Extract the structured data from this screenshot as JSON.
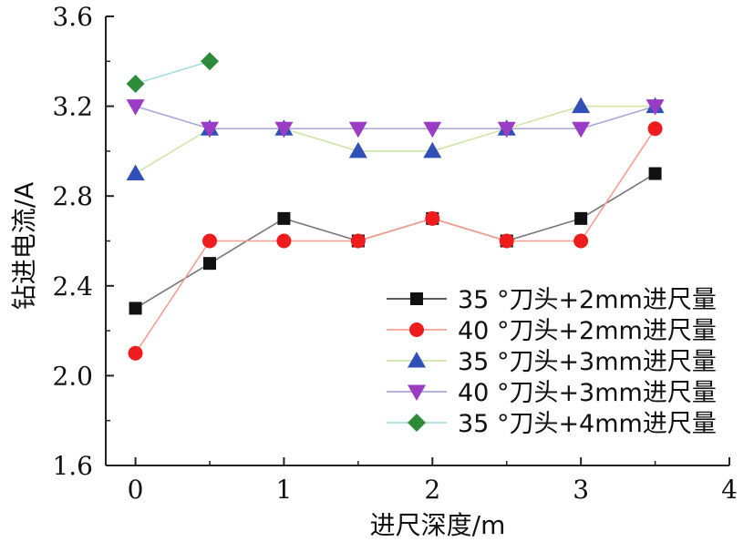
{
  "chart_data": {
    "type": "line",
    "title": "",
    "xlabel": "进尺深度/m",
    "ylabel": "钻进电流/A",
    "xlim": [
      -0.2,
      4
    ],
    "ylim": [
      1.6,
      3.6
    ],
    "xticks": [
      0,
      1,
      2,
      3,
      4
    ],
    "xtick_labels": [
      "0",
      "1",
      "2",
      "3",
      "4"
    ],
    "yticks": [
      1.6,
      2.0,
      2.4,
      2.8,
      3.2,
      3.6
    ],
    "ytick_labels": [
      "1.6",
      "2.0",
      "2.4",
      "2.8",
      "3.2",
      "3.6"
    ],
    "grid": false,
    "legend_position": "bottom-right",
    "series": [
      {
        "name": "35 °刀头+2mm进尺量",
        "marker": "square",
        "marker_color": "#111111",
        "line_color": "#777777",
        "x": [
          0,
          0.5,
          1,
          1.5,
          2,
          2.5,
          3,
          3.5
        ],
        "y": [
          2.3,
          2.5,
          2.7,
          2.6,
          2.7,
          2.6,
          2.7,
          2.9
        ]
      },
      {
        "name": "40 °刀头+2mm进尺量",
        "marker": "circle",
        "marker_color": "#ee1c1c",
        "line_color": "#f4a090",
        "x": [
          0,
          0.5,
          1,
          1.5,
          2,
          2.5,
          3,
          3.5
        ],
        "y": [
          2.1,
          2.6,
          2.6,
          2.6,
          2.7,
          2.6,
          2.6,
          3.1
        ]
      },
      {
        "name": "35 °刀头+3mm进尺量",
        "marker": "triangle-up",
        "marker_color": "#3050b8",
        "line_color": "#cfe6a8",
        "x": [
          0,
          0.5,
          1,
          1.5,
          2,
          2.5,
          3,
          3.5
        ],
        "y": [
          2.9,
          3.1,
          3.1,
          3.0,
          3.0,
          3.1,
          3.2,
          3.2
        ]
      },
      {
        "name": "40 °刀头+3mm进尺量",
        "marker": "triangle-down",
        "marker_color": "#9a3cc4",
        "line_color": "#a7a7d8",
        "x": [
          0,
          0.5,
          1,
          1.5,
          2,
          2.5,
          3,
          3.5
        ],
        "y": [
          3.2,
          3.1,
          3.1,
          3.1,
          3.1,
          3.1,
          3.1,
          3.2
        ]
      },
      {
        "name": "35 °刀头+4mm进尺量",
        "marker": "diamond",
        "marker_color": "#2e8b3a",
        "line_color": "#a8dede",
        "x": [
          0,
          0.5
        ],
        "y": [
          3.3,
          3.4
        ]
      }
    ]
  }
}
